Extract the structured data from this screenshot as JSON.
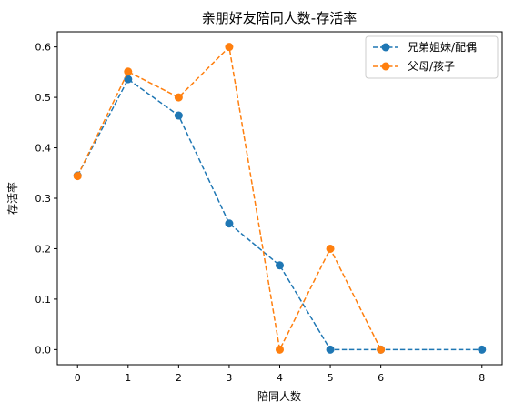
{
  "chart_data": {
    "type": "line",
    "title": "亲朋好友陪同人数-存活率",
    "xlabel": "陪同人数",
    "ylabel": "存活率",
    "xlim": [
      -0.4,
      8.4
    ],
    "ylim": [
      -0.03,
      0.63
    ],
    "xticks": [
      0,
      1,
      2,
      3,
      4,
      5,
      6,
      8
    ],
    "yticks": [
      0.0,
      0.1,
      0.2,
      0.3,
      0.4,
      0.5,
      0.6
    ],
    "ytick_labels": [
      "0.0",
      "0.1",
      "0.2",
      "0.3",
      "0.4",
      "0.5",
      "0.6"
    ],
    "grid": false,
    "legend_position": "top-right",
    "series": [
      {
        "name": "兄弟姐妹/配偶",
        "color": "#1f77b4",
        "x": [
          0,
          1,
          2,
          3,
          4,
          5,
          6,
          8
        ],
        "y": [
          0.345,
          0.536,
          0.464,
          0.25,
          0.167,
          0.0,
          0.0,
          0.0
        ]
      },
      {
        "name": "父母/孩子",
        "color": "#ff7f0e",
        "x": [
          0,
          1,
          2,
          3,
          4,
          5,
          6
        ],
        "y": [
          0.344,
          0.551,
          0.5,
          0.6,
          0.0,
          0.2,
          0.0
        ]
      }
    ]
  }
}
